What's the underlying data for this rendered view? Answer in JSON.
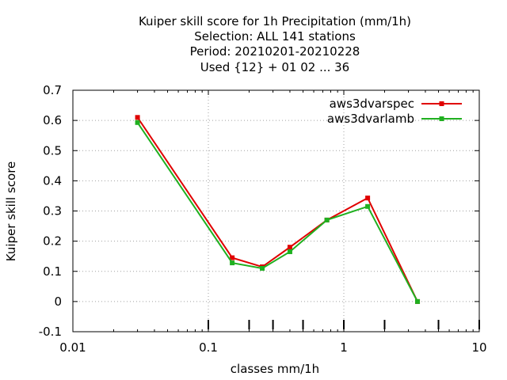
{
  "chart_data": {
    "type": "line",
    "title_lines": [
      "Kuiper skill score  for 1h Precipitation (mm/1h)",
      "Selection: ALL    141 stations",
      "Period: 20210201-20210228",
      "Used {12} + 01 02 ... 36"
    ],
    "xlabel": "classes mm/1h",
    "ylabel": "Kuiper skill score",
    "x_scale": "log",
    "xlim": [
      0.01,
      10
    ],
    "ylim": [
      -0.1,
      0.7
    ],
    "x_ticks": [
      {
        "value": 0.01,
        "label": "0.01"
      },
      {
        "value": 0.1,
        "label": "0.1"
      },
      {
        "value": 1,
        "label": "1"
      },
      {
        "value": 10,
        "label": "10"
      }
    ],
    "y_ticks": [
      {
        "value": -0.1,
        "label": "-0.1"
      },
      {
        "value": 0,
        "label": "0"
      },
      {
        "value": 0.1,
        "label": "0.1"
      },
      {
        "value": 0.2,
        "label": "0.2"
      },
      {
        "value": 0.3,
        "label": "0.3"
      },
      {
        "value": 0.4,
        "label": "0.4"
      },
      {
        "value": 0.5,
        "label": "0.5"
      },
      {
        "value": 0.6,
        "label": "0.6"
      },
      {
        "value": 0.7,
        "label": "0.7"
      }
    ],
    "bottom_marker_ticks": [
      0.1,
      0.2,
      0.3,
      0.5,
      1,
      2,
      5,
      10
    ],
    "grid": true,
    "legend_position": "top-right",
    "series": [
      {
        "name": "aws3dvarspec",
        "color": "#e00000",
        "x": [
          0.03,
          0.15,
          0.25,
          0.4,
          0.75,
          1.5,
          3.5
        ],
        "values": [
          0.61,
          0.145,
          0.115,
          0.18,
          0.27,
          0.343,
          0.0
        ]
      },
      {
        "name": "aws3dvarlamb",
        "color": "#20b020",
        "x": [
          0.03,
          0.15,
          0.25,
          0.4,
          0.75,
          1.5,
          3.5
        ],
        "values": [
          0.593,
          0.128,
          0.11,
          0.165,
          0.27,
          0.315,
          0.0
        ]
      }
    ]
  }
}
